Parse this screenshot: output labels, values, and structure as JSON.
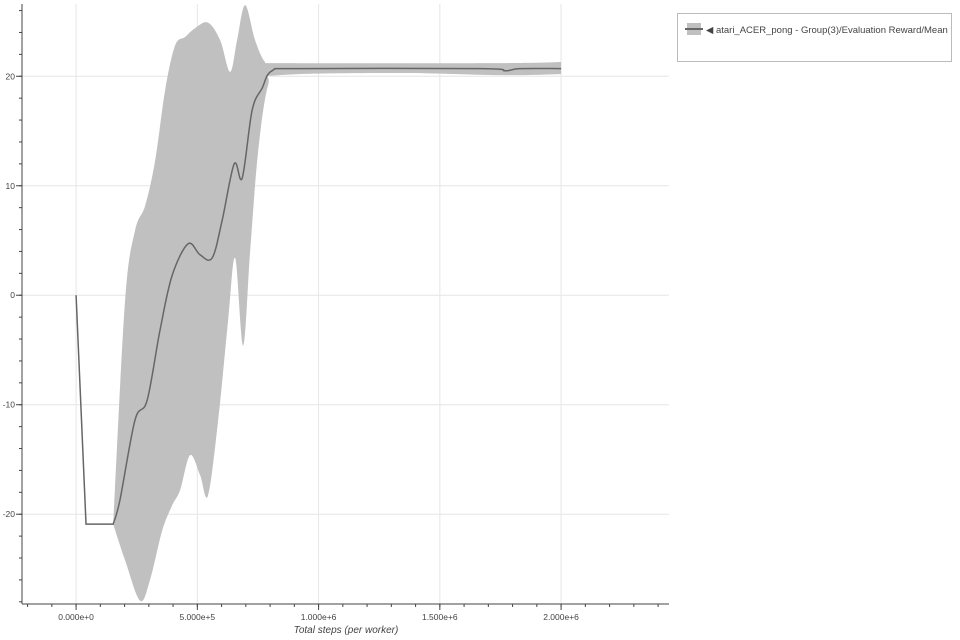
{
  "chart_data": {
    "type": "line",
    "title": "",
    "xlabel": "Total steps (per worker)",
    "ylabel": "",
    "xlim": [
      -223000,
      2445000
    ],
    "ylim": [
      -28.2,
      26.6
    ],
    "grid": true,
    "legend_placement": "outside-top-right",
    "x_ticks": [
      0,
      500000,
      1000000,
      1500000,
      2000000
    ],
    "x_tick_labels": [
      "0.000e+0",
      "5.000e+5",
      "1.000e+6",
      "1.500e+6",
      "2.000e+6"
    ],
    "y_ticks": [
      20,
      10,
      0,
      -10,
      -20
    ],
    "y_tick_labels": [
      "20",
      "10",
      "0",
      "-10",
      "-20"
    ],
    "series": [
      {
        "name": "◀ atari_ACER_pong - Group(3)/Evaluation Reward/Mean",
        "color": "#666666",
        "band_color": "#c0c0c0",
        "x": [
          0,
          41000,
          153000,
          181000,
          243000,
          293000,
          346000,
          396000,
          462000,
          511000,
          561000,
          602000,
          652000,
          685000,
          726000,
          767000,
          808000,
          924000,
          1670000,
          1770000,
          1830000,
          2000000
        ],
        "y": [
          0,
          -20.9,
          -20.9,
          -18.7,
          -11.4,
          -9.6,
          -3.2,
          1.8,
          4.7,
          3.7,
          3.4,
          6.8,
          12,
          10.7,
          16.9,
          18.9,
          20.5,
          20.7,
          20.7,
          20.5,
          20.7,
          20.7
        ],
        "upper": {
          "x": [
            153000,
            202000,
            243000,
            285000,
            326000,
            367000,
            408000,
            450000,
            491000,
            544000,
            594000,
            635000,
            664000,
            697000,
            738000,
            779000,
            821000,
            1750000,
            2000000
          ],
          "y": [
            -20.9,
            -0.5,
            5.9,
            8.2,
            12.3,
            18.7,
            22.8,
            23.6,
            24.4,
            24.9,
            23.3,
            20.4,
            23.3,
            26.5,
            23.3,
            21.3,
            21.2,
            21.2,
            21.3
          ]
        },
        "lower": {
          "x": [
            153000,
            202000,
            264000,
            305000,
            355000,
            396000,
            429000,
            470000,
            511000,
            544000,
            586000,
            627000,
            656000,
            689000,
            718000,
            751000,
            792000,
            841000,
            1336000,
            1750000,
            2000000
          ],
          "y": [
            -20.9,
            -24.2,
            -27.9,
            -26,
            -21.5,
            -19.2,
            -17.8,
            -14.6,
            -16.4,
            -18.3,
            -11.4,
            -2.3,
            3.4,
            -4.6,
            4.1,
            13.2,
            19.2,
            20.1,
            20.3,
            20.1,
            20.2
          ]
        }
      }
    ]
  }
}
